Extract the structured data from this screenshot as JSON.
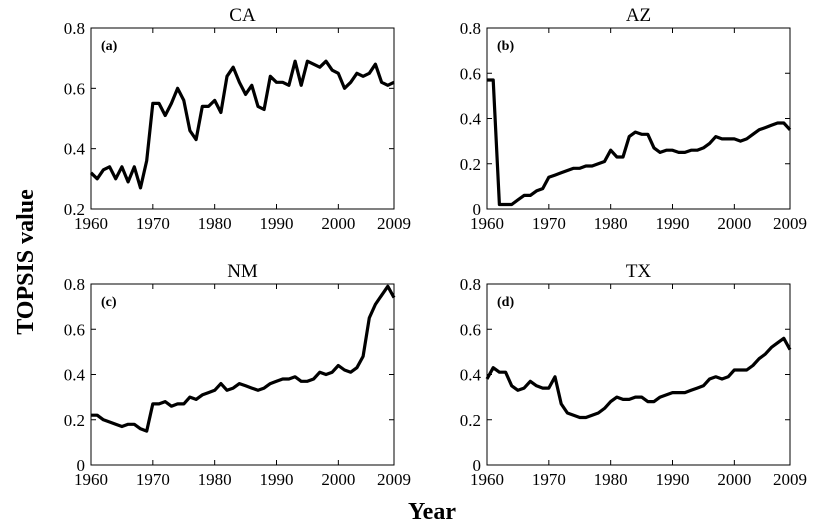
{
  "figure": {
    "xlabel": "Year",
    "ylabel": "TOPSIS value",
    "line_color": "#000000"
  },
  "chart_data": [
    {
      "type": "line",
      "title": "CA",
      "tag": "(a)",
      "xlim": [
        1960,
        2009
      ],
      "ylim": [
        0.2,
        0.8
      ],
      "xticks": [
        1960,
        1970,
        1980,
        1990,
        2000,
        2009
      ],
      "yticks": [
        0.2,
        0.4,
        0.6,
        0.8
      ],
      "ytick_labels": [
        "0.2",
        "0.4",
        "0.6",
        "0.8"
      ],
      "x": [
        1960,
        1961,
        1962,
        1963,
        1964,
        1965,
        1966,
        1967,
        1968,
        1969,
        1970,
        1971,
        1972,
        1973,
        1974,
        1975,
        1976,
        1977,
        1978,
        1979,
        1980,
        1981,
        1982,
        1983,
        1984,
        1985,
        1986,
        1987,
        1988,
        1989,
        1990,
        1991,
        1992,
        1993,
        1994,
        1995,
        1996,
        1997,
        1998,
        1999,
        2000,
        2001,
        2002,
        2003,
        2004,
        2005,
        2006,
        2007,
        2008,
        2009
      ],
      "y": [
        0.32,
        0.3,
        0.33,
        0.34,
        0.3,
        0.34,
        0.29,
        0.34,
        0.27,
        0.36,
        0.55,
        0.55,
        0.51,
        0.55,
        0.6,
        0.56,
        0.46,
        0.43,
        0.54,
        0.54,
        0.56,
        0.52,
        0.64,
        0.67,
        0.62,
        0.58,
        0.61,
        0.54,
        0.53,
        0.64,
        0.62,
        0.62,
        0.61,
        0.69,
        0.61,
        0.69,
        0.68,
        0.67,
        0.69,
        0.66,
        0.65,
        0.6,
        0.62,
        0.65,
        0.64,
        0.65,
        0.68,
        0.62,
        0.61,
        0.62
      ]
    },
    {
      "type": "line",
      "title": "AZ",
      "tag": "(b)",
      "xlim": [
        1960,
        2009
      ],
      "ylim": [
        0,
        0.8
      ],
      "xticks": [
        1960,
        1970,
        1980,
        1990,
        2000,
        2009
      ],
      "yticks": [
        0,
        0.2,
        0.4,
        0.6,
        0.8
      ],
      "ytick_labels": [
        "0",
        "0.2",
        "0.4",
        "0.6",
        "0.8"
      ],
      "x": [
        1960,
        1961,
        1962,
        1963,
        1964,
        1965,
        1966,
        1967,
        1968,
        1969,
        1970,
        1971,
        1972,
        1973,
        1974,
        1975,
        1976,
        1977,
        1978,
        1979,
        1980,
        1981,
        1982,
        1983,
        1984,
        1985,
        1986,
        1987,
        1988,
        1989,
        1990,
        1991,
        1992,
        1993,
        1994,
        1995,
        1996,
        1997,
        1998,
        1999,
        2000,
        2001,
        2002,
        2003,
        2004,
        2005,
        2006,
        2007,
        2008,
        2009
      ],
      "y": [
        0.57,
        0.57,
        0.02,
        0.02,
        0.02,
        0.04,
        0.06,
        0.06,
        0.08,
        0.09,
        0.14,
        0.15,
        0.16,
        0.17,
        0.18,
        0.18,
        0.19,
        0.19,
        0.2,
        0.21,
        0.26,
        0.23,
        0.23,
        0.32,
        0.34,
        0.33,
        0.33,
        0.27,
        0.25,
        0.26,
        0.26,
        0.25,
        0.25,
        0.26,
        0.26,
        0.27,
        0.29,
        0.32,
        0.31,
        0.31,
        0.31,
        0.3,
        0.31,
        0.33,
        0.35,
        0.36,
        0.37,
        0.38,
        0.38,
        0.35
      ]
    },
    {
      "type": "line",
      "title": "NM",
      "tag": "(c)",
      "xlim": [
        1960,
        2009
      ],
      "ylim": [
        0,
        0.8
      ],
      "xticks": [
        1960,
        1970,
        1980,
        1990,
        2000,
        2009
      ],
      "yticks": [
        0,
        0.2,
        0.4,
        0.6,
        0.8
      ],
      "ytick_labels": [
        "0",
        "0.2",
        "0.4",
        "0.6",
        "0.8"
      ],
      "x": [
        1960,
        1961,
        1962,
        1963,
        1964,
        1965,
        1966,
        1967,
        1968,
        1969,
        1970,
        1971,
        1972,
        1973,
        1974,
        1975,
        1976,
        1977,
        1978,
        1979,
        1980,
        1981,
        1982,
        1983,
        1984,
        1985,
        1986,
        1987,
        1988,
        1989,
        1990,
        1991,
        1992,
        1993,
        1994,
        1995,
        1996,
        1997,
        1998,
        1999,
        2000,
        2001,
        2002,
        2003,
        2004,
        2005,
        2006,
        2007,
        2008,
        2009
      ],
      "y": [
        0.22,
        0.22,
        0.2,
        0.19,
        0.18,
        0.17,
        0.18,
        0.18,
        0.16,
        0.15,
        0.27,
        0.27,
        0.28,
        0.26,
        0.27,
        0.27,
        0.3,
        0.29,
        0.31,
        0.32,
        0.33,
        0.36,
        0.33,
        0.34,
        0.36,
        0.35,
        0.34,
        0.33,
        0.34,
        0.36,
        0.37,
        0.38,
        0.38,
        0.39,
        0.37,
        0.37,
        0.38,
        0.41,
        0.4,
        0.41,
        0.44,
        0.42,
        0.41,
        0.43,
        0.48,
        0.65,
        0.71,
        0.75,
        0.79,
        0.74
      ]
    },
    {
      "type": "line",
      "title": "TX",
      "tag": "(d)",
      "xlim": [
        1960,
        2009
      ],
      "ylim": [
        0,
        0.8
      ],
      "xticks": [
        1960,
        1970,
        1980,
        1990,
        2000,
        2009
      ],
      "yticks": [
        0,
        0.2,
        0.4,
        0.6,
        0.8
      ],
      "ytick_labels": [
        "0",
        "0.2",
        "0.4",
        "0.6",
        "0.8"
      ],
      "x": [
        1960,
        1961,
        1962,
        1963,
        1964,
        1965,
        1966,
        1967,
        1968,
        1969,
        1970,
        1971,
        1972,
        1973,
        1974,
        1975,
        1976,
        1977,
        1978,
        1979,
        1980,
        1981,
        1982,
        1983,
        1984,
        1985,
        1986,
        1987,
        1988,
        1989,
        1990,
        1991,
        1992,
        1993,
        1994,
        1995,
        1996,
        1997,
        1998,
        1999,
        2000,
        2001,
        2002,
        2003,
        2004,
        2005,
        2006,
        2007,
        2008,
        2009
      ],
      "y": [
        0.38,
        0.43,
        0.41,
        0.41,
        0.35,
        0.33,
        0.34,
        0.37,
        0.35,
        0.34,
        0.34,
        0.39,
        0.27,
        0.23,
        0.22,
        0.21,
        0.21,
        0.22,
        0.23,
        0.25,
        0.28,
        0.3,
        0.29,
        0.29,
        0.3,
        0.3,
        0.28,
        0.28,
        0.3,
        0.31,
        0.32,
        0.32,
        0.32,
        0.33,
        0.34,
        0.35,
        0.38,
        0.39,
        0.38,
        0.39,
        0.42,
        0.42,
        0.42,
        0.44,
        0.47,
        0.49,
        0.52,
        0.54,
        0.56,
        0.51
      ]
    }
  ]
}
